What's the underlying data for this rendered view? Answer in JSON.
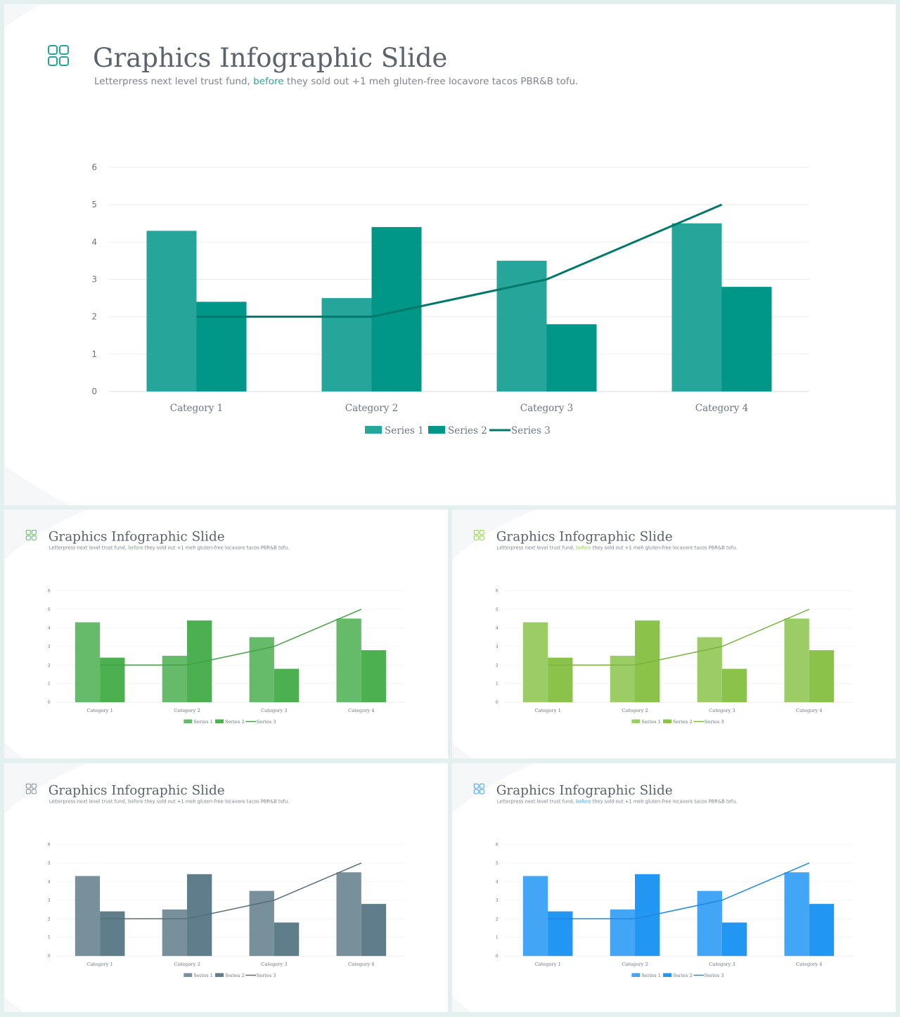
{
  "slides": [
    {
      "title": "Graphics Infographic Slide",
      "subtitle_pre": "Letterpress next level trust fund, ",
      "subtitle_highlight": "before",
      "subtitle_post": " they sold out +1 meh gluten-free locavore tacos PBR&B tofu.",
      "accent": "#26a69a",
      "colors": {
        "series1": "#26a69a",
        "series2": "#009688",
        "series3": "#00796b"
      }
    },
    {
      "title": "Graphics Infographic Slide",
      "subtitle_pre": "Letterpress next level trust fund, ",
      "subtitle_highlight": "before",
      "subtitle_post": " they sold out +1 meh gluten-free locavore tacos PBR&B tofu.",
      "accent": "#66bb6a",
      "colors": {
        "series1": "#66bb6a",
        "series2": "#4caf50",
        "series3": "#43a047"
      }
    },
    {
      "title": "Graphics Infographic Slide",
      "subtitle_pre": "Letterpress next level trust fund, ",
      "subtitle_highlight": "before",
      "subtitle_post": " they sold out +1 meh gluten-free locavore tacos PBR&B tofu.",
      "accent": "#9ccc65",
      "colors": {
        "series1": "#9ccc65",
        "series2": "#8bc34a",
        "series3": "#7cb342"
      }
    },
    {
      "title": "Graphics Infographic Slide",
      "subtitle_pre": "Letterpress next level trust fund, ",
      "subtitle_highlight": "before",
      "subtitle_post": " they sold out +1 meh gluten-free locavore tacos PBR&B tofu.",
      "accent": "#78909c",
      "colors": {
        "series1": "#78909c",
        "series2": "#607d8b",
        "series3": "#546e7a"
      }
    },
    {
      "title": "Graphics Infographic Slide",
      "subtitle_pre": "Letterpress next level trust fund, ",
      "subtitle_highlight": "before",
      "subtitle_post": " they sold out +1 meh gluten-free locavore tacos PBR&B tofu.",
      "accent": "#42a5f5",
      "colors": {
        "series1": "#42a5f5",
        "series2": "#2196f3",
        "series3": "#1e88e5"
      }
    }
  ],
  "icon": "grid-icon",
  "chart_data": {
    "type": "bar",
    "categories": [
      "Category 1",
      "Category 2",
      "Category 3",
      "Category 4"
    ],
    "series": [
      {
        "name": "Series 1",
        "type": "bar",
        "values": [
          4.3,
          2.5,
          3.5,
          4.5
        ]
      },
      {
        "name": "Series 2",
        "type": "bar",
        "values": [
          2.4,
          4.4,
          1.8,
          2.8
        ]
      },
      {
        "name": "Series 3",
        "type": "line",
        "values": [
          2,
          2,
          3,
          5
        ]
      }
    ],
    "ylim": [
      0,
      6
    ],
    "yticks": [
      0,
      1,
      2,
      3,
      4,
      5,
      6
    ],
    "grid": true,
    "legend": "bottom"
  }
}
